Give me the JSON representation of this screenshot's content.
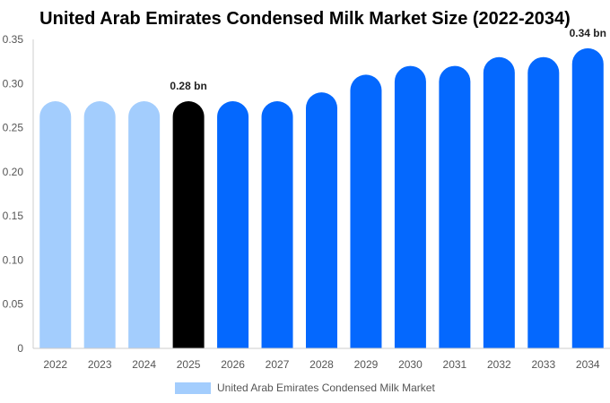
{
  "chart_data": {
    "type": "bar",
    "title": "United Arab Emirates Condensed Milk Market Size (2022-2034)",
    "xlabel": "",
    "ylabel": "",
    "categories": [
      "2022",
      "2023",
      "2024",
      "2025",
      "2026",
      "2027",
      "2028",
      "2029",
      "2030",
      "2031",
      "2032",
      "2033",
      "2034"
    ],
    "series": [
      {
        "name": "United Arab Emirates Condensed Milk Market",
        "values": [
          0.28,
          0.28,
          0.28,
          0.28,
          0.28,
          0.28,
          0.29,
          0.31,
          0.32,
          0.32,
          0.33,
          0.33,
          0.34
        ]
      }
    ],
    "ylim": [
      0,
      0.35
    ],
    "yticks": [
      "0",
      "0.05",
      "0.10",
      "0.15",
      "0.20",
      "0.25",
      "0.30",
      "0.35"
    ],
    "data_labels": [
      {
        "category": "2025",
        "text": "0.28 bn"
      },
      {
        "category": "2034",
        "text": "0.34 bn"
      }
    ],
    "grid": false,
    "legend_position": "bottom-center",
    "colors": {
      "historical": "#a3cdfd",
      "current": "#000000",
      "forecast": "#0468fe",
      "axis": "#cccccc",
      "legend_swatch": "#a3cdfd"
    },
    "highlight_category": "2025",
    "forecast_start_category": "2026"
  }
}
